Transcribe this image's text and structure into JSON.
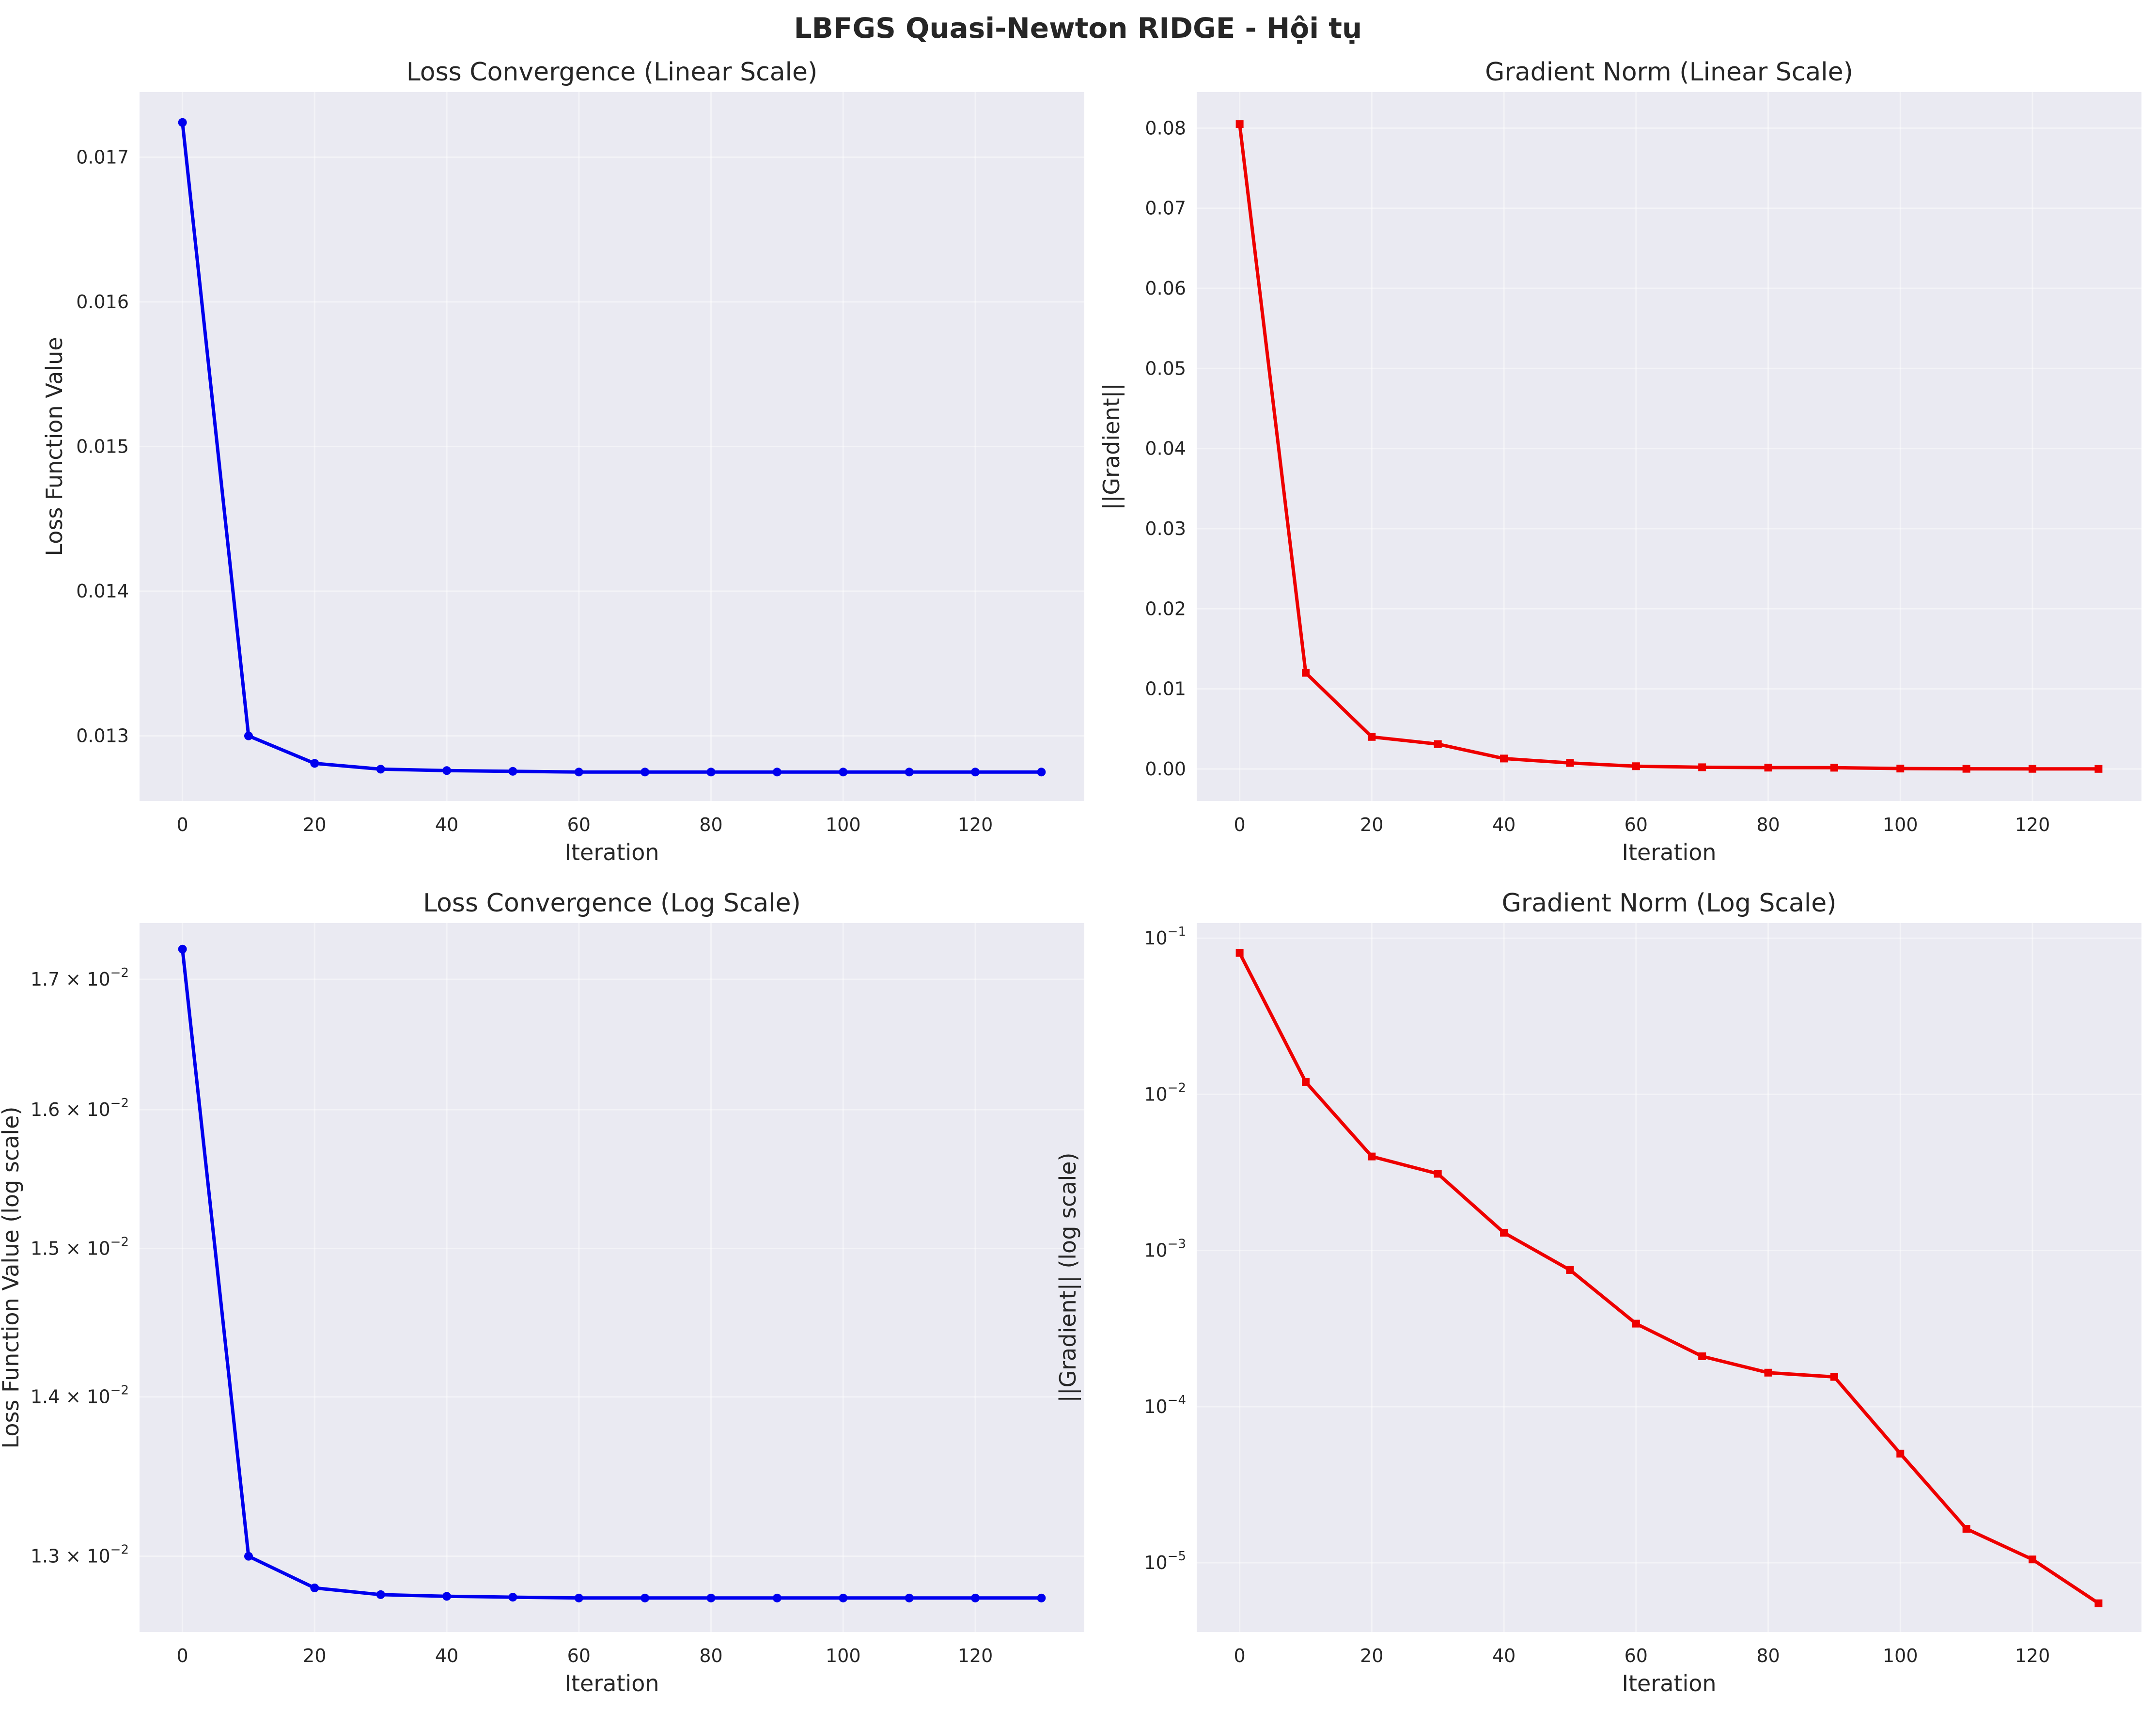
{
  "suptitle": "LBFGS Quasi-Newton RIDGE - Hội tụ",
  "colors": {
    "loss": "#0000ee",
    "grad": "#ee0000",
    "plot_bg": "#eaeaf2"
  },
  "chart_data": [
    {
      "type": "line",
      "title": "Loss Convergence (Linear Scale)",
      "xlabel": "Iteration",
      "ylabel": "Loss Function Value",
      "yscale": "linear",
      "xlim": [
        -6.5,
        136.5
      ],
      "ylim": [
        0.01255,
        0.01745
      ],
      "xticks": [
        0,
        20,
        40,
        60,
        80,
        100,
        120
      ],
      "xtick_labels": [
        "0",
        "20",
        "40",
        "60",
        "80",
        "100",
        "120"
      ],
      "yticks": [
        0.013,
        0.014,
        0.015,
        0.016,
        0.017
      ],
      "ytick_labels": [
        "0.013",
        "0.014",
        "0.015",
        "0.016",
        "0.017"
      ],
      "grid": true,
      "series": [
        {
          "color": "#0000ee",
          "marker": "circle",
          "x": [
            0,
            10,
            20,
            30,
            40,
            50,
            60,
            70,
            80,
            90,
            100,
            110,
            120,
            130
          ],
          "y": [
            0.01724,
            0.013,
            0.01281,
            0.01277,
            0.01276,
            0.012755,
            0.01275,
            0.01275,
            0.01275,
            0.01275,
            0.01275,
            0.01275,
            0.01275,
            0.01275
          ]
        }
      ]
    },
    {
      "type": "line",
      "title": "Gradient Norm (Linear Scale)",
      "xlabel": "Iteration",
      "ylabel": "||Gradient||",
      "yscale": "linear",
      "xlim": [
        -6.5,
        136.5
      ],
      "ylim": [
        -0.004,
        0.0845
      ],
      "xticks": [
        0,
        20,
        40,
        60,
        80,
        100,
        120
      ],
      "xtick_labels": [
        "0",
        "20",
        "40",
        "60",
        "80",
        "100",
        "120"
      ],
      "yticks": [
        0,
        0.01,
        0.02,
        0.03,
        0.04,
        0.05,
        0.06,
        0.07,
        0.08
      ],
      "ytick_labels": [
        "0.00",
        "0.01",
        "0.02",
        "0.03",
        "0.04",
        "0.05",
        "0.06",
        "0.07",
        "0.08"
      ],
      "grid": true,
      "series": [
        {
          "color": "#ee0000",
          "marker": "square",
          "x": [
            0,
            10,
            20,
            30,
            40,
            50,
            60,
            70,
            80,
            90,
            100,
            110,
            120,
            130
          ],
          "y": [
            0.0805,
            0.012,
            0.004,
            0.0031,
            0.0013,
            0.00075,
            0.00034,
            0.00021,
            0.000165,
            0.000155,
            5e-05,
            1.65e-05,
            1.05e-05,
            5.5e-06
          ]
        }
      ]
    },
    {
      "type": "line",
      "title": "Loss Convergence (Log Scale)",
      "xlabel": "Iteration",
      "ylabel": "Loss Function Value (log scale)",
      "yscale": "log",
      "xlim": [
        -6.5,
        136.5
      ],
      "ylim": [
        0.01255,
        0.01745
      ],
      "xticks": [
        0,
        20,
        40,
        60,
        80,
        100,
        120
      ],
      "xtick_labels": [
        "0",
        "20",
        "40",
        "60",
        "80",
        "100",
        "120"
      ],
      "yticks": [
        0.013,
        0.014,
        0.015,
        0.016,
        0.017
      ],
      "ytick_labels": [
        {
          "base": "1.3 × 10",
          "exp": "−2"
        },
        {
          "base": "1.4 × 10",
          "exp": "−2"
        },
        {
          "base": "1.5 × 10",
          "exp": "−2"
        },
        {
          "base": "1.6 × 10",
          "exp": "−2"
        },
        {
          "base": "1.7 × 10",
          "exp": "−2"
        }
      ],
      "grid": true,
      "series": [
        {
          "color": "#0000ee",
          "marker": "circle",
          "x": [
            0,
            10,
            20,
            30,
            40,
            50,
            60,
            70,
            80,
            90,
            100,
            110,
            120,
            130
          ],
          "y": [
            0.01724,
            0.013,
            0.01281,
            0.01277,
            0.01276,
            0.012755,
            0.01275,
            0.01275,
            0.01275,
            0.01275,
            0.01275,
            0.01275,
            0.01275,
            0.01275
          ]
        }
      ]
    },
    {
      "type": "line",
      "title": "Gradient Norm (Log Scale)",
      "xlabel": "Iteration",
      "ylabel": "||Gradient|| (log scale)",
      "yscale": "log",
      "xlim": [
        -6.5,
        136.5
      ],
      "ylim": [
        3.6e-06,
        0.125
      ],
      "xticks": [
        0,
        20,
        40,
        60,
        80,
        100,
        120
      ],
      "xtick_labels": [
        "0",
        "20",
        "40",
        "60",
        "80",
        "100",
        "120"
      ],
      "yticks": [
        1e-05,
        0.0001,
        0.001,
        0.01,
        0.1
      ],
      "ytick_labels": [
        {
          "base": "10",
          "exp": "−5"
        },
        {
          "base": "10",
          "exp": "−4"
        },
        {
          "base": "10",
          "exp": "−3"
        },
        {
          "base": "10",
          "exp": "−2"
        },
        {
          "base": "10",
          "exp": "−1"
        }
      ],
      "grid": true,
      "series": [
        {
          "color": "#ee0000",
          "marker": "square",
          "x": [
            0,
            10,
            20,
            30,
            40,
            50,
            60,
            70,
            80,
            90,
            100,
            110,
            120,
            130
          ],
          "y": [
            0.0805,
            0.012,
            0.004,
            0.0031,
            0.0013,
            0.00075,
            0.00034,
            0.00021,
            0.000165,
            0.000155,
            5e-05,
            1.65e-05,
            1.05e-05,
            5.5e-06
          ]
        }
      ]
    }
  ]
}
